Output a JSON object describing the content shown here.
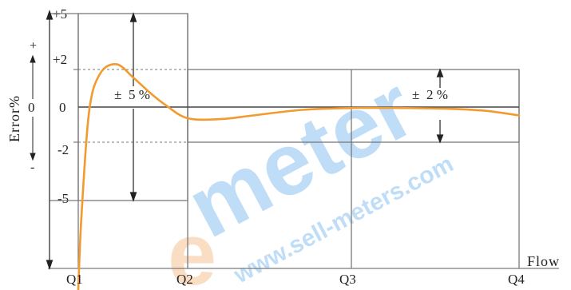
{
  "chart_data": {
    "type": "line",
    "xlabel": "Flow",
    "ylabel": "Error%",
    "x_ticks": [
      "Q1",
      "Q2",
      "Q3",
      "Q4"
    ],
    "y_ticks": [
      "+5",
      "+2",
      "0",
      "-2",
      "-5"
    ],
    "ylim": [
      -5,
      5
    ],
    "y_axis_signs": {
      "plus": "+",
      "zero": "0",
      "minus": "-"
    },
    "tolerance_bands": [
      {
        "label": "± 5 %",
        "from": "Q1",
        "to": "Q2",
        "upper": 5,
        "lower": -5
      },
      {
        "label": "± 2 %",
        "from": "Q2",
        "to": "Q4",
        "upper": 2,
        "lower": -2
      }
    ],
    "band_label_symbol": "±",
    "band_label_values": [
      "5 %",
      "2 %"
    ],
    "series": [
      {
        "color": "#f39a2e",
        "x": [
          1.0,
          1.03,
          1.1,
          1.2,
          1.35,
          1.5,
          1.65,
          1.8,
          2.0,
          2.2,
          2.4,
          2.7,
          3.0,
          3.3,
          3.6,
          3.8,
          4.0
        ],
        "y": [
          -9.8,
          -5.8,
          -0.2,
          1.8,
          2.3,
          1.6,
          0.8,
          0.1,
          -0.6,
          -0.65,
          -0.45,
          -0.15,
          -0.05,
          -0.05,
          -0.1,
          -0.2,
          -0.45
        ]
      }
    ],
    "grid": false,
    "legend": "none"
  },
  "watermark": {
    "brand_left": "e",
    "brand_right": "meter",
    "url": "www.sell-meters.com",
    "brand_color": "#f08a2a",
    "accent_color": "#1e88e5"
  },
  "colors": {
    "frame": "#7a7a7a",
    "zero_line": "#444444",
    "text": "#222222"
  }
}
